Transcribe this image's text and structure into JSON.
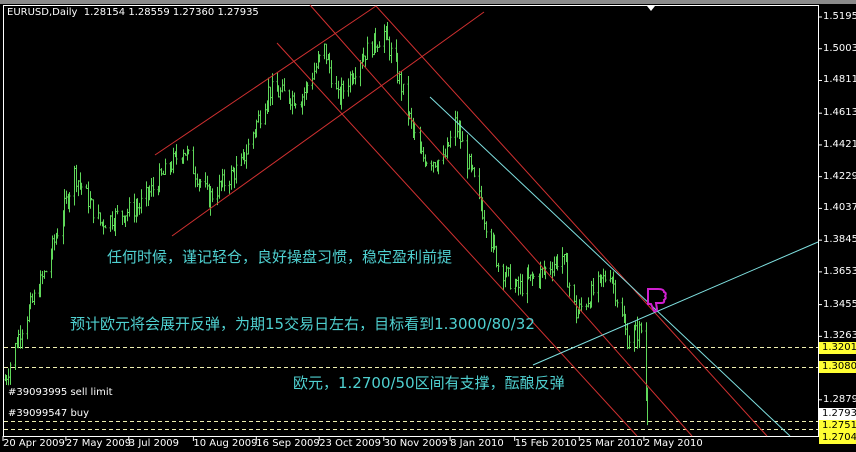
{
  "header": {
    "symbol": "EURUSD,Daily",
    "open": "1.28154",
    "high": "1.28559",
    "low": "1.27360",
    "close": "1.27935"
  },
  "annotations": [
    "任何时候，谨记轻仓，良好操盘习惯，稳定盈利前提",
    "预计欧元将会展开反弹，为期15交易日左右，目标看到1.3000/80/32",
    "欧元，1.2700/50区间有支撑，酝酿反弹"
  ],
  "orders": [
    "#39093995 sell limit",
    "#39099547 buy"
  ],
  "price_axis": [
    "1.51950",
    "1.50030",
    "1.48110",
    "1.46130",
    "1.44210",
    "1.42290",
    "1.40370",
    "1.38450",
    "1.36530",
    "1.34550",
    "1.32630",
    "1.28790"
  ],
  "price_labels": [
    {
      "value": "1.32015",
      "bg": "#ffff33",
      "fg": "#000000"
    },
    {
      "value": "1.30805",
      "bg": "#ffff33",
      "fg": "#000000"
    },
    {
      "value": "1.27935",
      "bg": "#ffffff",
      "fg": "#000000"
    },
    {
      "value": "1.27511",
      "bg": "#ffff33",
      "fg": "#000000"
    },
    {
      "value": "1.27040",
      "bg": "#ffff33",
      "fg": "#000000"
    }
  ],
  "time_axis": [
    "20 Apr 2009",
    "27 May 2009",
    "3 Jul 2009",
    "10 Aug 2009",
    "16 Sep 2009",
    "23 Oct 2009",
    "30 Nov 2009",
    "8 Jan 2010",
    "15 Feb 2010",
    "25 Mar 2010",
    "2 May 2010"
  ],
  "colors": {
    "bars": "#5fd85a",
    "trendlines": "#d03030",
    "channel_cyan": "#7fe0e0",
    "levels": "#f0f0b0",
    "annotation_text": "#4fd0d0",
    "thumbs_down": "#d020d0"
  },
  "icons": {
    "signal": "thumbs-down-icon"
  },
  "chart_data": {
    "type": "ohlc",
    "symbol": "EURUSD",
    "timeframe": "Daily",
    "ylim": [
      1.268,
      1.527
    ],
    "grid": false,
    "x": [
      "2009-04-21",
      "2009-04-30",
      "2009-05-15",
      "2009-06-01",
      "2009-06-16",
      "2009-07-09",
      "2009-08-04",
      "2009-08-19",
      "2009-09-07",
      "2009-09-23",
      "2009-10-12",
      "2009-10-26",
      "2009-11-03",
      "2009-11-16",
      "2009-11-30",
      "2009-12-08",
      "2009-12-21",
      "2010-01-04",
      "2010-01-11",
      "2010-01-25",
      "2010-02-05",
      "2010-02-16",
      "2010-03-03",
      "2010-03-15",
      "2010-03-23",
      "2010-04-12",
      "2010-04-22",
      "2010-04-30",
      "2010-05-04"
    ],
    "close": [
      1.3,
      1.33,
      1.366,
      1.425,
      1.395,
      1.405,
      1.44,
      1.41,
      1.43,
      1.475,
      1.47,
      1.5,
      1.47,
      1.495,
      1.51,
      1.485,
      1.435,
      1.432,
      1.455,
      1.41,
      1.37,
      1.355,
      1.365,
      1.375,
      1.34,
      1.366,
      1.325,
      1.33,
      1.279
    ],
    "horizontal_levels": [
      1.32015,
      1.30805,
      1.27511,
      1.2704
    ]
  }
}
